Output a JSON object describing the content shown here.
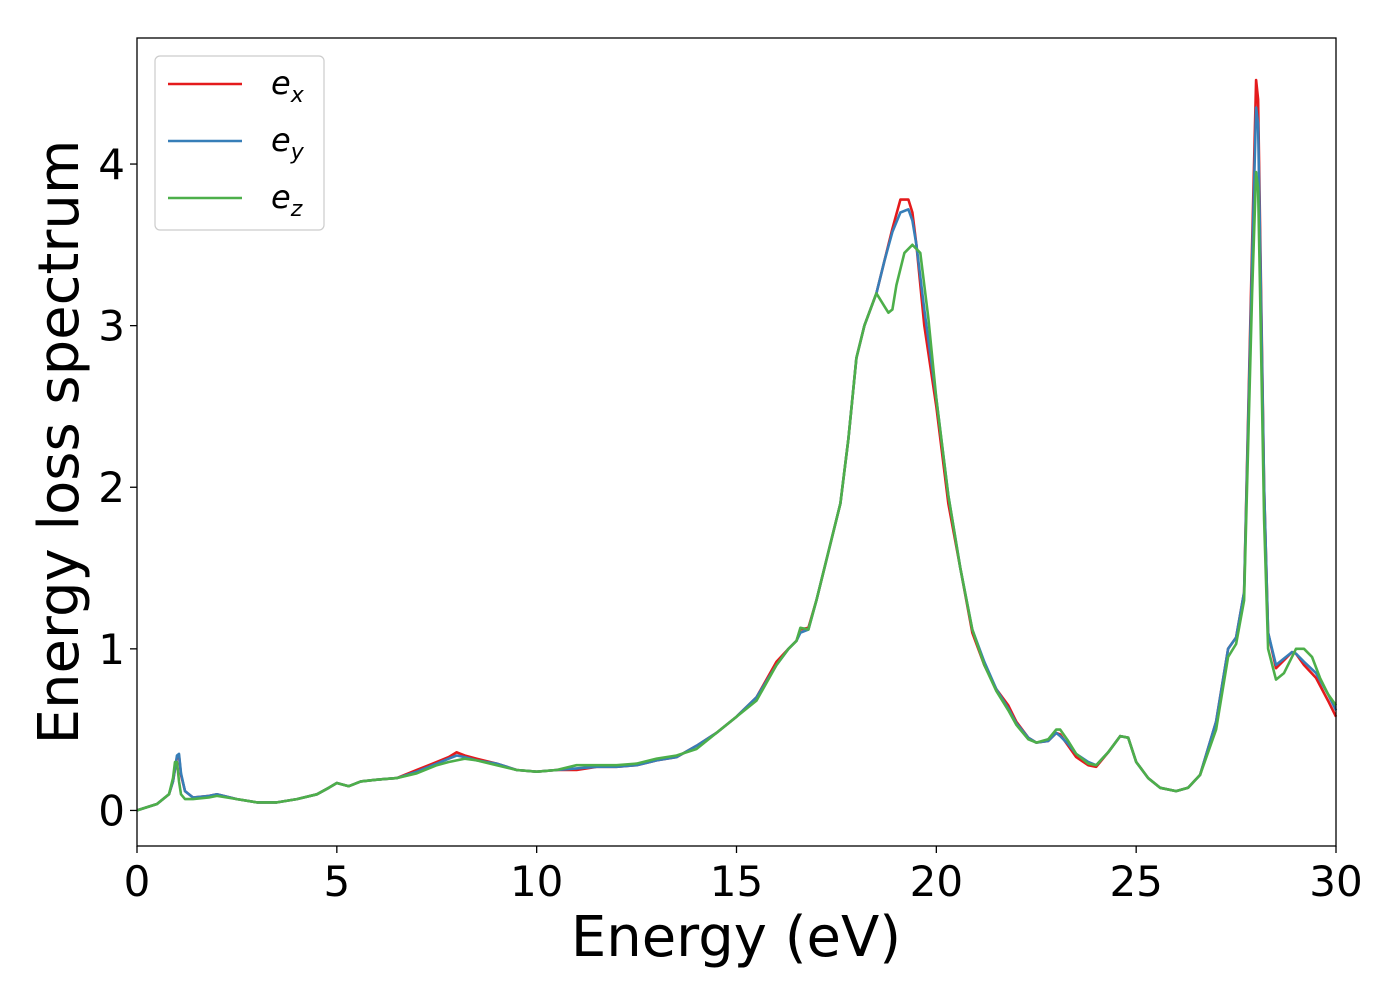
{
  "chart_data": {
    "type": "line",
    "title": "",
    "xlabel": "Energy (eV)",
    "ylabel": "Energy loss spectrum",
    "xlim": [
      0,
      30
    ],
    "ylim": [
      -0.22,
      4.78
    ],
    "xticks": [
      0,
      5,
      10,
      15,
      20,
      25,
      30
    ],
    "xtick_labels": [
      "0",
      "5",
      "10",
      "15",
      "20",
      "25",
      "30"
    ],
    "yticks": [
      0,
      1,
      2,
      3,
      4
    ],
    "ytick_labels": [
      "0",
      "1",
      "2",
      "3",
      "4"
    ],
    "grid": false,
    "legend_position": "top-left",
    "series": [
      {
        "name": "e_x",
        "legend_base": "e",
        "legend_sub": "x",
        "color": "#e41a1c",
        "x": [
          0,
          0.5,
          0.8,
          0.9,
          1.0,
          1.05,
          1.1,
          1.2,
          1.4,
          1.8,
          2.0,
          2.5,
          3.0,
          3.5,
          4.0,
          4.5,
          4.8,
          5.0,
          5.3,
          5.6,
          6.0,
          6.5,
          7.0,
          7.5,
          7.8,
          8.0,
          8.2,
          8.5,
          9.0,
          9.5,
          10.0,
          10.5,
          11.0,
          11.5,
          12.0,
          12.5,
          13.0,
          13.5,
          14.0,
          14.5,
          15.0,
          15.5,
          16.0,
          16.3,
          16.5,
          16.6,
          16.8,
          17.0,
          17.3,
          17.6,
          17.8,
          18.0,
          18.2,
          18.5,
          18.7,
          18.9,
          19.1,
          19.3,
          19.4,
          19.5,
          19.7,
          20.0,
          20.3,
          20.6,
          20.9,
          21.2,
          21.5,
          21.8,
          22.0,
          22.3,
          22.5,
          22.8,
          23.0,
          23.1,
          23.3,
          23.5,
          23.8,
          24.0,
          24.3,
          24.6,
          24.8,
          25.0,
          25.3,
          25.6,
          26.0,
          26.3,
          26.6,
          27.0,
          27.3,
          27.5,
          27.7,
          27.9,
          28.0,
          28.05,
          28.1,
          28.2,
          28.3,
          28.5,
          28.7,
          28.9,
          29.0,
          29.2,
          29.5,
          29.8,
          30.0
        ],
        "y": [
          0,
          0.04,
          0.1,
          0.18,
          0.33,
          0.34,
          0.22,
          0.12,
          0.08,
          0.09,
          0.1,
          0.07,
          0.05,
          0.05,
          0.07,
          0.1,
          0.14,
          0.17,
          0.15,
          0.18,
          0.19,
          0.2,
          0.25,
          0.3,
          0.33,
          0.36,
          0.34,
          0.32,
          0.29,
          0.25,
          0.24,
          0.25,
          0.25,
          0.27,
          0.27,
          0.28,
          0.31,
          0.33,
          0.4,
          0.48,
          0.58,
          0.7,
          0.92,
          1.0,
          1.05,
          1.12,
          1.13,
          1.3,
          1.6,
          1.9,
          2.3,
          2.8,
          3.0,
          3.2,
          3.4,
          3.6,
          3.78,
          3.78,
          3.7,
          3.5,
          3.0,
          2.5,
          1.9,
          1.5,
          1.1,
          0.9,
          0.75,
          0.65,
          0.55,
          0.45,
          0.42,
          0.43,
          0.48,
          0.47,
          0.4,
          0.33,
          0.28,
          0.27,
          0.36,
          0.46,
          0.45,
          0.3,
          0.2,
          0.14,
          0.12,
          0.14,
          0.22,
          0.55,
          1.0,
          1.07,
          1.35,
          3.5,
          4.52,
          4.4,
          3.6,
          2.0,
          1.1,
          0.88,
          0.93,
          0.98,
          0.97,
          0.9,
          0.82,
          0.68,
          0.58
        ]
      },
      {
        "name": "e_y",
        "legend_base": "e",
        "legend_sub": "y",
        "color": "#377eb8",
        "x": [
          0,
          0.5,
          0.8,
          0.9,
          1.0,
          1.05,
          1.1,
          1.2,
          1.4,
          1.8,
          2.0,
          2.5,
          3.0,
          3.5,
          4.0,
          4.5,
          4.8,
          5.0,
          5.3,
          5.6,
          6.0,
          6.5,
          7.0,
          7.5,
          7.8,
          8.0,
          8.2,
          8.5,
          9.0,
          9.5,
          10.0,
          10.5,
          11.0,
          11.5,
          12.0,
          12.5,
          13.0,
          13.5,
          14.0,
          14.5,
          15.0,
          15.5,
          16.0,
          16.3,
          16.5,
          16.6,
          16.8,
          17.0,
          17.3,
          17.6,
          17.8,
          18.0,
          18.2,
          18.5,
          18.7,
          18.9,
          19.1,
          19.3,
          19.4,
          19.5,
          19.7,
          20.0,
          20.3,
          20.6,
          20.9,
          21.2,
          21.5,
          21.8,
          22.0,
          22.3,
          22.5,
          22.8,
          23.0,
          23.1,
          23.3,
          23.5,
          23.8,
          24.0,
          24.3,
          24.6,
          24.8,
          25.0,
          25.3,
          25.6,
          26.0,
          26.3,
          26.6,
          27.0,
          27.3,
          27.5,
          27.7,
          27.9,
          28.0,
          28.05,
          28.1,
          28.2,
          28.3,
          28.5,
          28.7,
          28.9,
          29.0,
          29.2,
          29.5,
          29.8,
          30.0
        ],
        "y": [
          0,
          0.04,
          0.1,
          0.18,
          0.34,
          0.35,
          0.23,
          0.12,
          0.08,
          0.09,
          0.1,
          0.07,
          0.05,
          0.05,
          0.07,
          0.1,
          0.14,
          0.17,
          0.15,
          0.18,
          0.19,
          0.2,
          0.24,
          0.29,
          0.32,
          0.34,
          0.33,
          0.31,
          0.29,
          0.25,
          0.24,
          0.25,
          0.26,
          0.27,
          0.27,
          0.28,
          0.31,
          0.33,
          0.4,
          0.48,
          0.58,
          0.7,
          0.9,
          1.0,
          1.05,
          1.1,
          1.12,
          1.3,
          1.6,
          1.9,
          2.3,
          2.8,
          3.0,
          3.2,
          3.4,
          3.58,
          3.7,
          3.72,
          3.65,
          3.5,
          3.1,
          2.55,
          1.95,
          1.5,
          1.12,
          0.92,
          0.75,
          0.63,
          0.54,
          0.45,
          0.42,
          0.43,
          0.48,
          0.46,
          0.41,
          0.35,
          0.3,
          0.28,
          0.36,
          0.46,
          0.45,
          0.3,
          0.2,
          0.14,
          0.12,
          0.14,
          0.22,
          0.55,
          1.0,
          1.07,
          1.35,
          3.4,
          4.35,
          4.25,
          3.5,
          2.0,
          1.1,
          0.9,
          0.94,
          0.98,
          0.97,
          0.92,
          0.85,
          0.72,
          0.62
        ]
      },
      {
        "name": "e_z",
        "legend_base": "e",
        "legend_sub": "z",
        "color": "#4daf4a",
        "x": [
          0,
          0.5,
          0.8,
          0.9,
          0.95,
          1.0,
          1.05,
          1.1,
          1.2,
          1.4,
          1.8,
          2.0,
          2.5,
          3.0,
          3.5,
          4.0,
          4.5,
          4.8,
          5.0,
          5.3,
          5.6,
          6.0,
          6.5,
          7.0,
          7.5,
          7.8,
          8.0,
          8.2,
          8.5,
          9.0,
          9.5,
          10.0,
          10.5,
          11.0,
          11.5,
          12.0,
          12.5,
          13.0,
          13.5,
          14.0,
          14.5,
          15.0,
          15.5,
          16.0,
          16.3,
          16.5,
          16.6,
          16.8,
          17.0,
          17.3,
          17.6,
          17.8,
          18.0,
          18.2,
          18.5,
          18.7,
          18.8,
          18.9,
          19.0,
          19.2,
          19.4,
          19.6,
          19.8,
          20.0,
          20.3,
          20.6,
          20.9,
          21.2,
          21.5,
          21.8,
          22.0,
          22.3,
          22.5,
          22.8,
          23.0,
          23.1,
          23.3,
          23.5,
          23.8,
          24.0,
          24.3,
          24.6,
          24.8,
          25.0,
          25.3,
          25.6,
          26.0,
          26.3,
          26.6,
          27.0,
          27.3,
          27.5,
          27.7,
          27.9,
          28.0,
          28.05,
          28.1,
          28.2,
          28.3,
          28.5,
          28.7,
          28.9,
          29.0,
          29.2,
          29.4,
          29.6,
          29.8,
          30.0
        ],
        "y": [
          0,
          0.04,
          0.1,
          0.2,
          0.3,
          0.3,
          0.18,
          0.1,
          0.07,
          0.07,
          0.08,
          0.09,
          0.07,
          0.05,
          0.05,
          0.07,
          0.1,
          0.14,
          0.17,
          0.15,
          0.18,
          0.19,
          0.2,
          0.23,
          0.28,
          0.3,
          0.31,
          0.32,
          0.31,
          0.28,
          0.25,
          0.24,
          0.25,
          0.28,
          0.28,
          0.28,
          0.29,
          0.32,
          0.34,
          0.38,
          0.48,
          0.58,
          0.68,
          0.9,
          1.0,
          1.05,
          1.13,
          1.12,
          1.3,
          1.6,
          1.9,
          2.3,
          2.8,
          3.0,
          3.2,
          3.12,
          3.08,
          3.1,
          3.25,
          3.45,
          3.5,
          3.45,
          3.05,
          2.55,
          1.95,
          1.5,
          1.12,
          0.9,
          0.74,
          0.62,
          0.53,
          0.44,
          0.42,
          0.44,
          0.5,
          0.5,
          0.43,
          0.35,
          0.29,
          0.28,
          0.36,
          0.46,
          0.45,
          0.3,
          0.2,
          0.14,
          0.12,
          0.14,
          0.22,
          0.5,
          0.95,
          1.03,
          1.3,
          3.2,
          3.95,
          3.85,
          3.2,
          1.8,
          1.0,
          0.81,
          0.85,
          0.95,
          1.0,
          1.0,
          0.95,
          0.82,
          0.72,
          0.65
        ]
      }
    ]
  }
}
